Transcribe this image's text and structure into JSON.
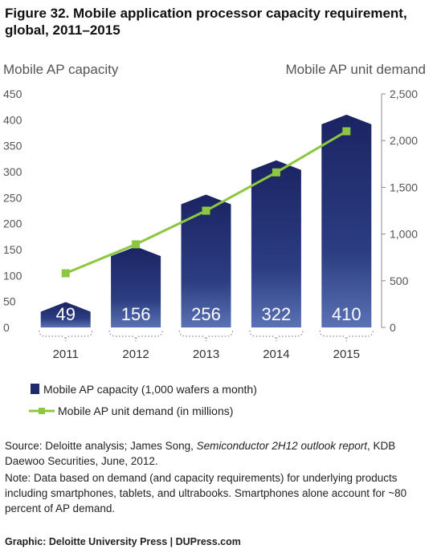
{
  "title": "Figure 32. Mobile application processor capacity requirement, global, 2011–2015",
  "chart_data": {
    "type": "bar",
    "categories": [
      "2011",
      "2012",
      "2013",
      "2014",
      "2015"
    ],
    "series": [
      {
        "name": "Mobile AP capacity (1,000 wafers a month)",
        "type": "bar",
        "axis": "left",
        "values": [
          49,
          156,
          256,
          322,
          410
        ],
        "color": "#1f2a6b"
      },
      {
        "name": "Mobile AP unit demand (in millions)",
        "type": "line",
        "axis": "right",
        "values": [
          580,
          890,
          1250,
          1660,
          2100
        ],
        "color": "#8dc63f"
      }
    ],
    "ylabel_left": "Mobile AP capacity",
    "ylabel_right": "Mobile AP unit demand",
    "ylim_left": [
      0,
      450
    ],
    "ylim_right": [
      0,
      2500
    ],
    "yticks_left": [
      "0",
      "50",
      "100",
      "150",
      "200",
      "250",
      "300",
      "350",
      "400",
      "450"
    ],
    "yticks_right": [
      "0",
      "500",
      "1,000",
      "1,500",
      "2,000",
      "2,500"
    ],
    "bar_labels": [
      "49",
      "156",
      "256",
      "322",
      "410"
    ],
    "grid": false,
    "legend_position": "bottom-left"
  },
  "source": {
    "prefix": "Source: Deloitte analysis; James Song, ",
    "italic": "Semiconductor 2H12 outlook report",
    "suffix": ", KDB Daewoo Securities, June, 2012."
  },
  "note": "Note: Data based on demand (and capacity requirements) for underlying products including smartphones, tablets, and ultrabooks. Smartphones alone account for ~80 percent of AP demand.",
  "credit": "Graphic: Deloitte University Press  |  DUPress.com"
}
